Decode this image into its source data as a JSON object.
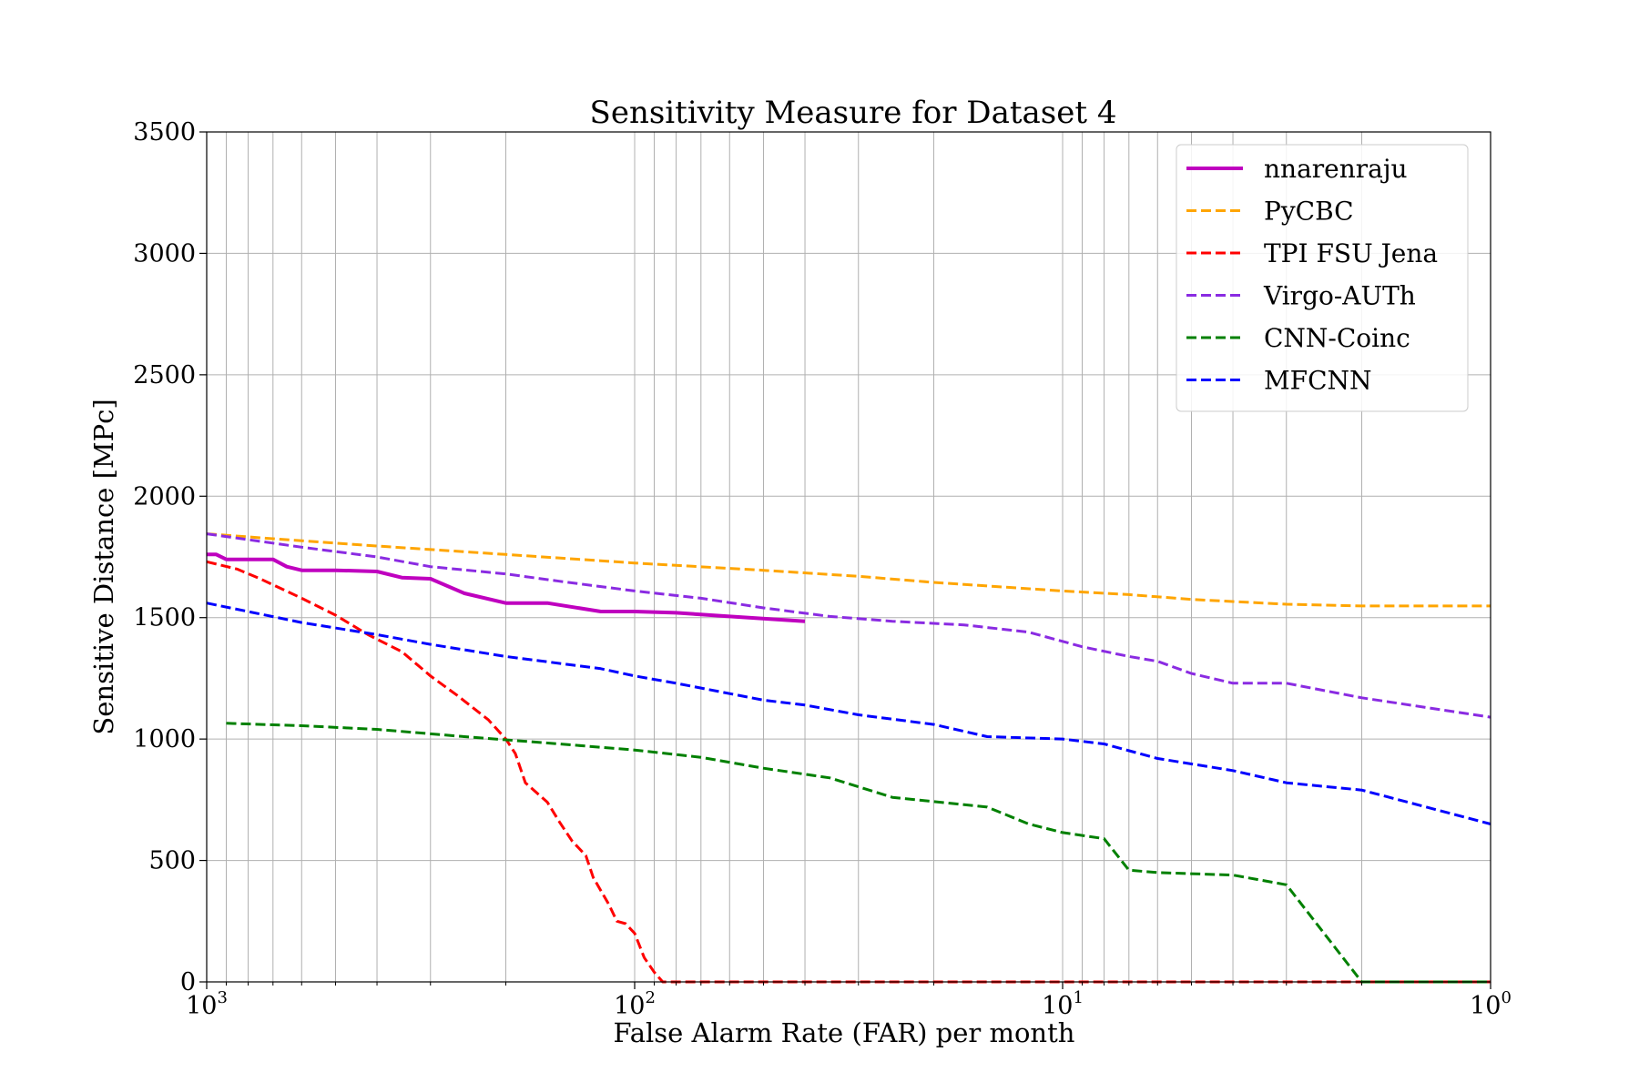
{
  "chart_data": {
    "type": "line",
    "title": "Sensitivity Measure for Dataset 4",
    "xlabel": "False Alarm Rate (FAR) per month",
    "ylabel": "Sensitive Distance [MPc]",
    "x_scale": "log",
    "x_reversed": true,
    "xlim": [
      1000,
      1
    ],
    "ylim": [
      0,
      3500
    ],
    "grid": true,
    "legend_position": "top-right",
    "x_ticks": [
      {
        "value": 1000,
        "base": "10",
        "exp": "3"
      },
      {
        "value": 100,
        "base": "10",
        "exp": "2"
      },
      {
        "value": 10,
        "base": "10",
        "exp": "1"
      },
      {
        "value": 1,
        "base": "10",
        "exp": "0"
      }
    ],
    "y_ticks": [
      "0",
      "500",
      "1000",
      "1500",
      "2000",
      "2500",
      "3000",
      "3500"
    ],
    "series": [
      {
        "name": "nnarenraju",
        "color": "#bf00bf",
        "style": "solid",
        "x": [
          1000,
          950,
          900,
          800,
          700,
          650,
          600,
          500,
          400,
          350,
          300,
          250,
          200,
          160,
          120,
          100,
          80,
          60,
          40
        ],
        "y": [
          1760,
          1760,
          1740,
          1740,
          1740,
          1710,
          1695,
          1695,
          1690,
          1665,
          1660,
          1600,
          1560,
          1560,
          1525,
          1525,
          1520,
          1505,
          1485
        ]
      },
      {
        "name": "PyCBC",
        "color": "#ffa500",
        "style": "dashed",
        "x": [
          1000,
          700,
          400,
          200,
          100,
          50,
          30,
          20,
          10,
          7,
          5,
          3,
          2,
          1
        ],
        "y": [
          1845,
          1825,
          1795,
          1760,
          1725,
          1695,
          1670,
          1645,
          1610,
          1595,
          1575,
          1555,
          1548,
          1548
        ]
      },
      {
        "name": "TPI FSU Jena",
        "color": "#ff0000",
        "style": "dashed",
        "x": [
          1000,
          850,
          750,
          600,
          500,
          420,
          350,
          300,
          260,
          220,
          200,
          190,
          180,
          160,
          150,
          140,
          130,
          125,
          115,
          110,
          105,
          100,
          95,
          90,
          86,
          84,
          84,
          80,
          1
        ],
        "y": [
          1730,
          1700,
          1660,
          1580,
          1510,
          1430,
          1360,
          1260,
          1180,
          1080,
          1000,
          940,
          820,
          740,
          660,
          580,
          520,
          430,
          320,
          250,
          240,
          200,
          100,
          40,
          0,
          0,
          0,
          0,
          0
        ]
      },
      {
        "name": "Virgo-AUTh",
        "color": "#8a2be2",
        "style": "dashed",
        "x": [
          1000,
          600,
          400,
          300,
          200,
          150,
          100,
          70,
          50,
          35,
          25,
          17,
          12,
          9,
          7,
          6,
          5,
          4,
          3,
          2,
          1
        ],
        "y": [
          1845,
          1790,
          1750,
          1710,
          1680,
          1650,
          1610,
          1580,
          1540,
          1505,
          1485,
          1470,
          1440,
          1380,
          1340,
          1320,
          1270,
          1230,
          1230,
          1170,
          1090
        ]
      },
      {
        "name": "CNN-Coinc",
        "color": "#008000",
        "style": "dashed",
        "x": [
          900,
          600,
          400,
          250,
          150,
          100,
          70,
          50,
          35,
          25,
          15,
          12,
          10,
          8,
          7,
          6,
          4,
          3,
          2,
          1
        ],
        "y": [
          1065,
          1055,
          1040,
          1010,
          980,
          955,
          925,
          880,
          840,
          760,
          720,
          650,
          615,
          590,
          460,
          450,
          440,
          400,
          0,
          0
        ]
      },
      {
        "name": "MFCNN",
        "color": "#0000ff",
        "style": "dashed",
        "x": [
          1000,
          600,
          400,
          300,
          200,
          120,
          100,
          80,
          50,
          40,
          30,
          20,
          15,
          10,
          8,
          6,
          4,
          3,
          2,
          1
        ],
        "y": [
          1560,
          1480,
          1430,
          1390,
          1340,
          1290,
          1260,
          1230,
          1160,
          1140,
          1100,
          1060,
          1010,
          1000,
          980,
          920,
          870,
          820,
          790,
          650
        ]
      }
    ]
  }
}
